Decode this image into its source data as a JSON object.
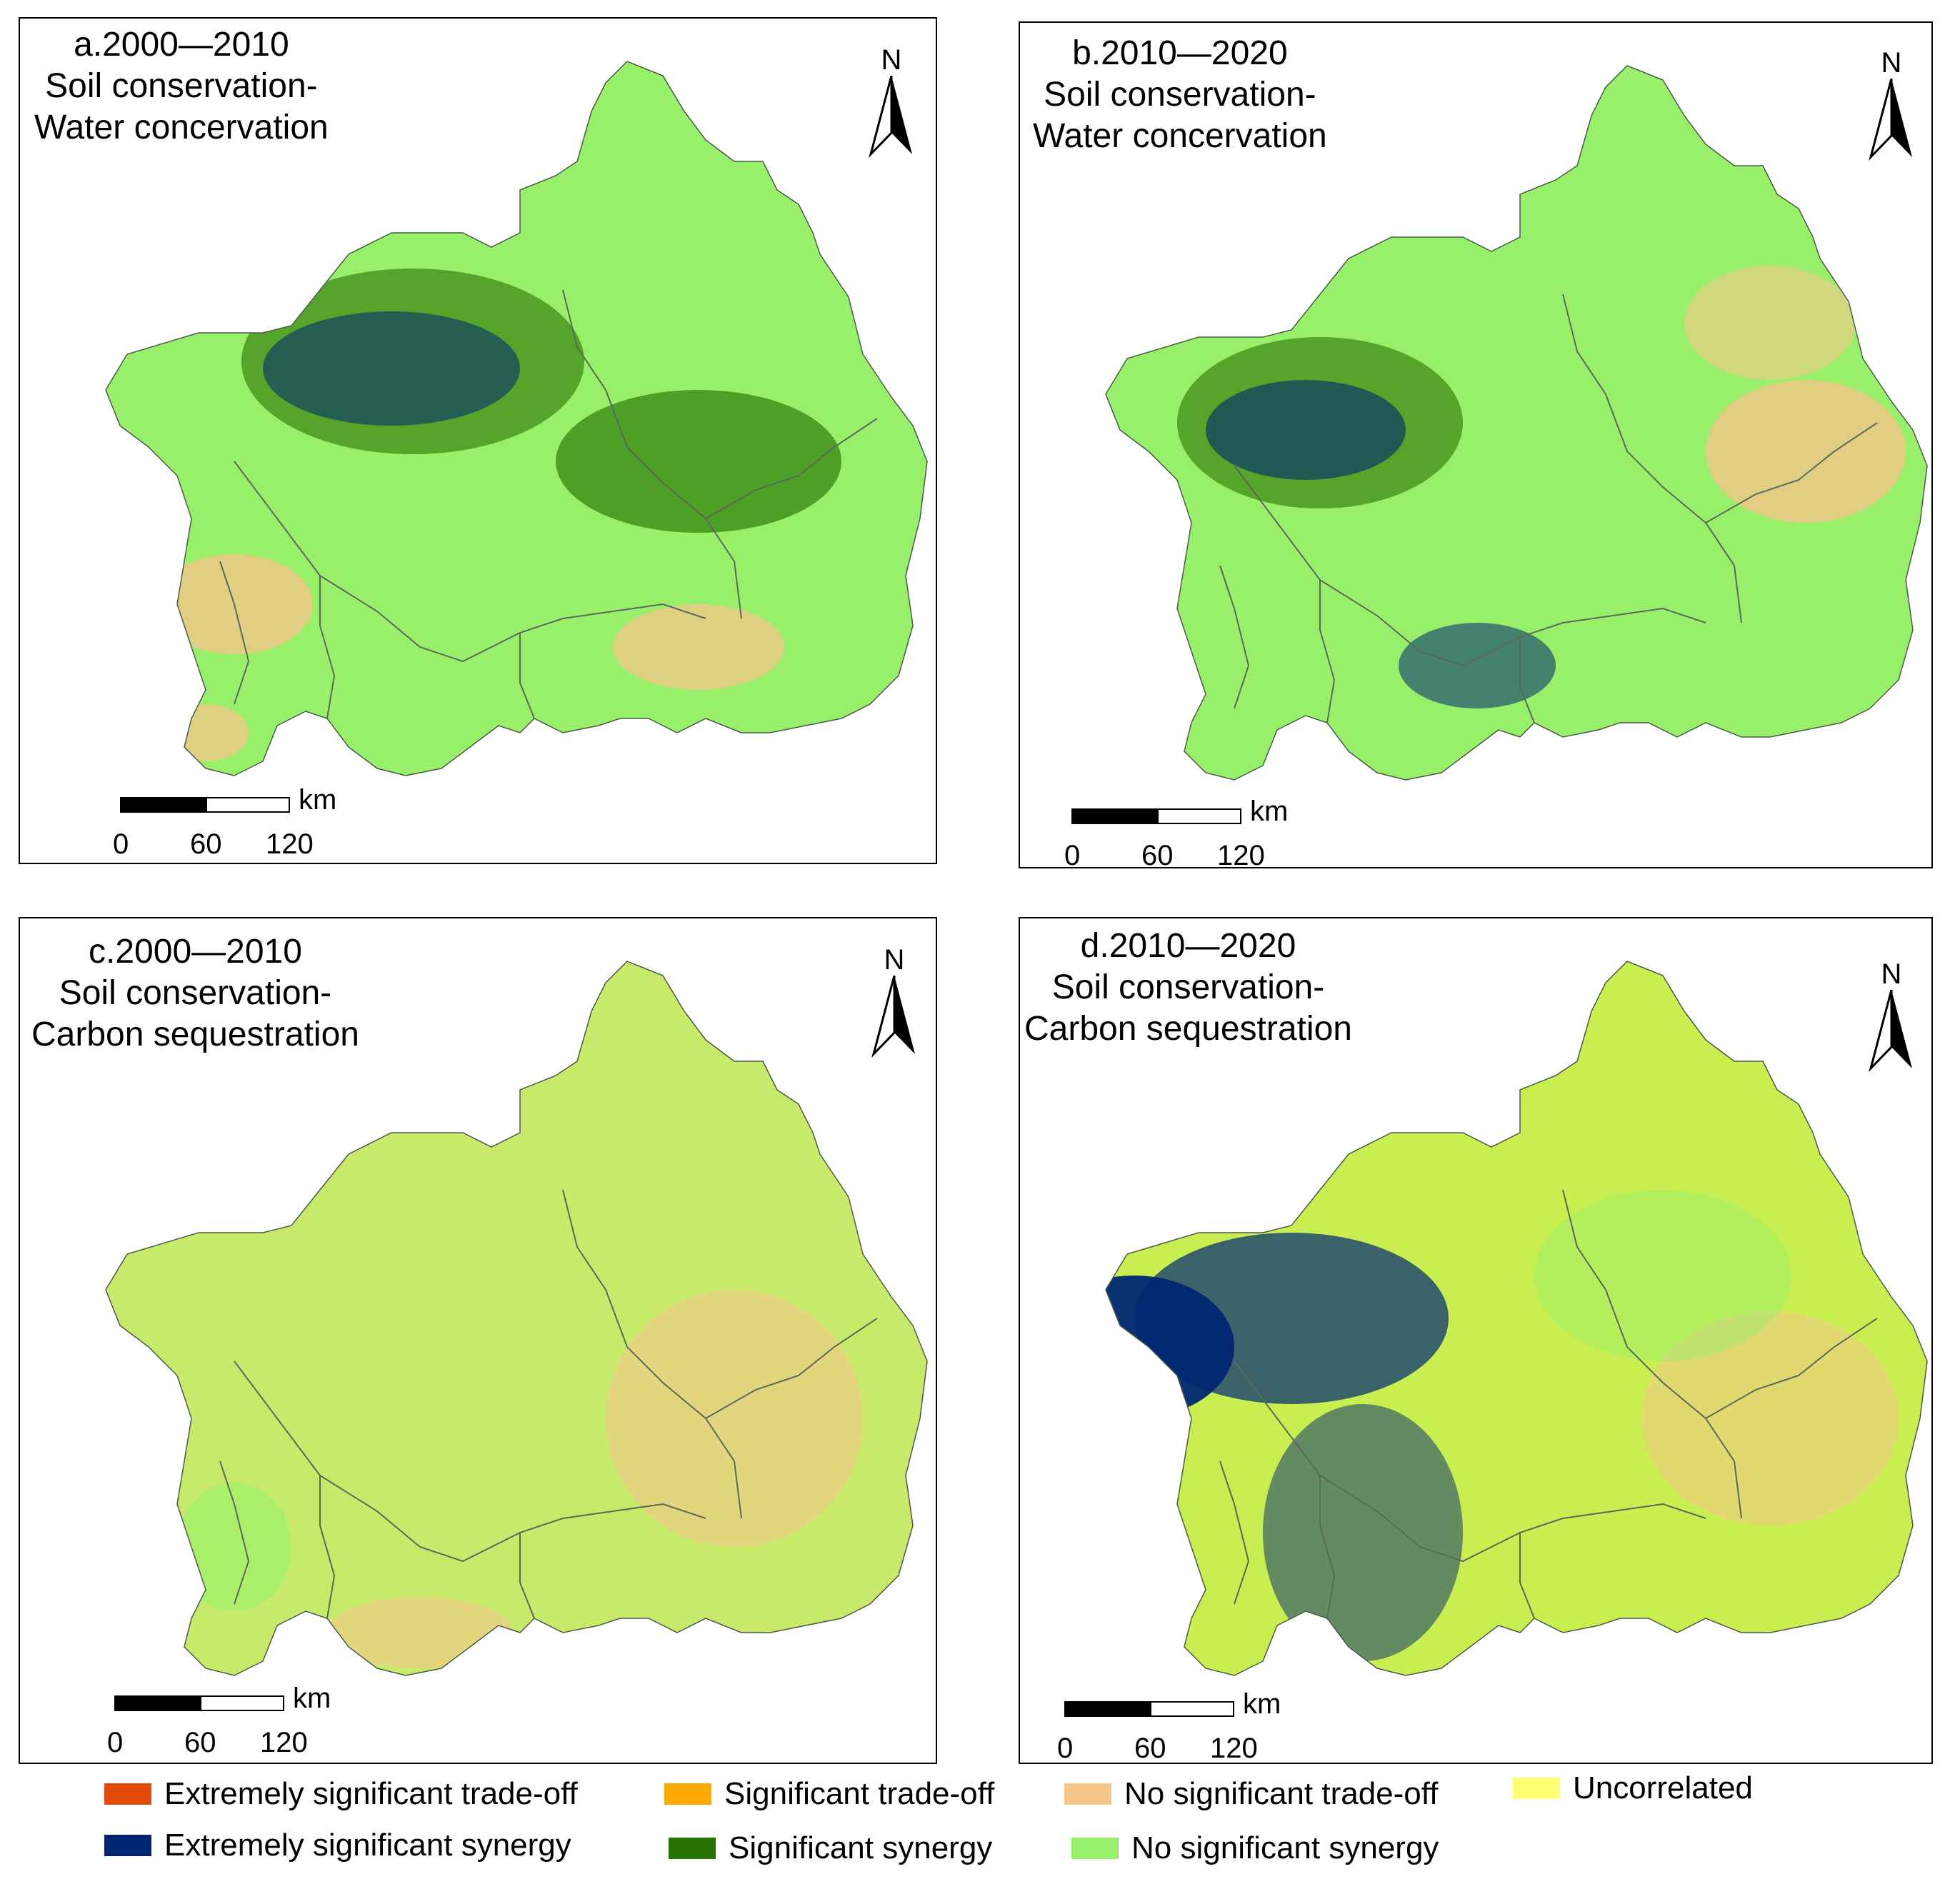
{
  "panels": [
    {
      "id": "a",
      "title": [
        "a.2000—2010",
        "Soil conservation-",
        "Water concervation"
      ]
    },
    {
      "id": "b",
      "title": [
        "b.2010—2020",
        "Soil conservation-",
        "Water concervation"
      ]
    },
    {
      "id": "c",
      "title": [
        "c.2000—2010",
        "Soil conservation-",
        "Carbon sequestration"
      ]
    },
    {
      "id": "d",
      "title": [
        "d.2010—2020",
        "Soil conservation-",
        "Carbon sequestration"
      ]
    }
  ],
  "north_label": "N",
  "scale_bar": {
    "unit": "km",
    "ticks": [
      "0",
      "60",
      "120"
    ]
  },
  "legend": [
    {
      "label": "Extremely significant trade-off",
      "color": "#e34a0a"
    },
    {
      "label": "Significant trade-off",
      "color": "#ffaa00"
    },
    {
      "label": "No significant trade-off",
      "color": "#f5c68a"
    },
    {
      "label": "Uncorrelated",
      "color": "#ffff73"
    },
    {
      "label": "Extremely significant synergy",
      "color": "#002673"
    },
    {
      "label": "Significant synergy",
      "color": "#267300"
    },
    {
      "label": "No significant synergy",
      "color": "#98f06a"
    }
  ],
  "map_fill_colors": {
    "a": "#98f06a",
    "b": "#98f06a",
    "c": "#c8ea6a",
    "d": "#c8ee50"
  }
}
